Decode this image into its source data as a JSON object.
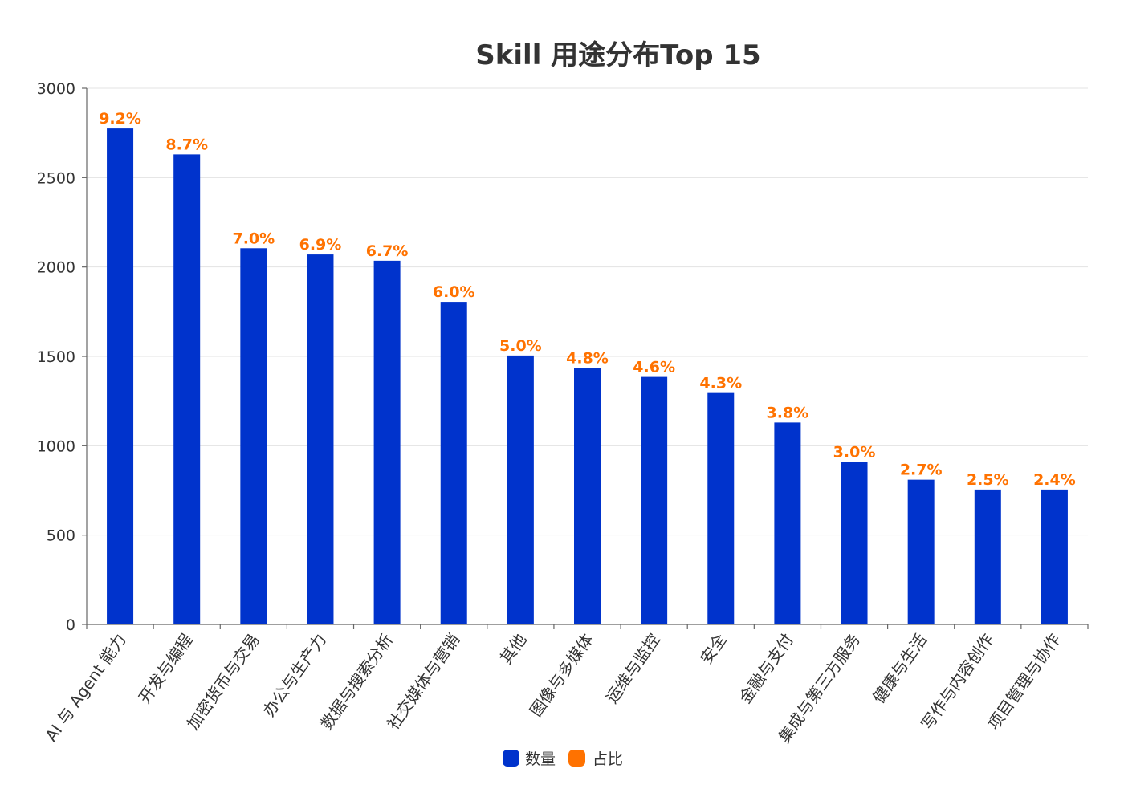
{
  "chart_data": {
    "type": "bar",
    "title": "Skill 用途分布Top 15",
    "xlabel": "",
    "ylabel": "",
    "ylim": [
      0,
      3000
    ],
    "yticks": [
      0,
      500,
      1000,
      1500,
      2000,
      2500,
      3000
    ],
    "grid": true,
    "legend_position": "bottom",
    "categories": [
      "AI 与 Agent 能力",
      "开发与编程",
      "加密货币与交易",
      "办公与生产力",
      "数据与搜索分析",
      "社交媒体与营销",
      "其他",
      "图像与多媒体",
      "运维与监控",
      "安全",
      "金融与支付",
      "集成与第三方服务",
      "健康与生活",
      "写作与内容创作",
      "项目管理与协作"
    ],
    "series": [
      {
        "name": "数量",
        "color": "#0033cc",
        "values": [
          2775,
          2630,
          2105,
          2070,
          2035,
          1805,
          1505,
          1435,
          1385,
          1295,
          1130,
          910,
          810,
          755,
          755
        ]
      },
      {
        "name": "占比",
        "color": "#ff7200",
        "labels": [
          "9.2%",
          "8.7%",
          "7.0%",
          "6.9%",
          "6.7%",
          "6.0%",
          "5.0%",
          "4.8%",
          "4.6%",
          "4.3%",
          "3.8%",
          "3.0%",
          "2.7%",
          "2.5%",
          "2.4%"
        ]
      }
    ]
  }
}
